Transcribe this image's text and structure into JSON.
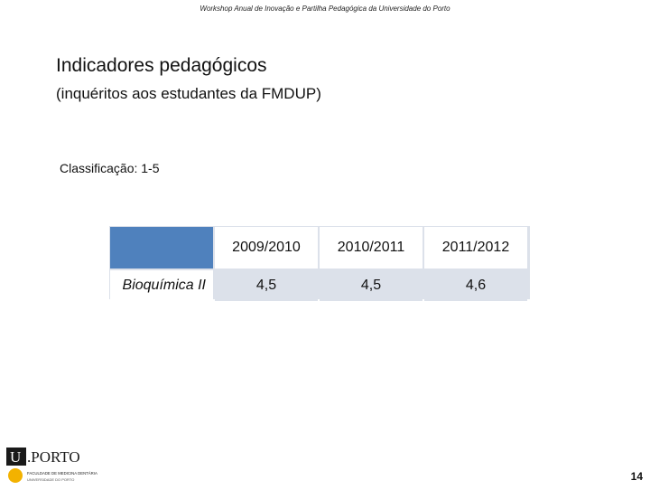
{
  "header": {
    "text": "Workshop Anual de Inovação e Partilha Pedagógica da Universidade do Porto"
  },
  "slide": {
    "title": "Indicadores pedagógicos",
    "subtitle": "(inquéritos aos estudantes da FMDUP)",
    "classification": "Classificação: 1-5",
    "page_number": "14"
  },
  "table": {
    "years": [
      "2009/2010",
      "2010/2011",
      "2011/2012"
    ],
    "rows": [
      {
        "label": "Bioquímica II",
        "values": [
          "4,5",
          "4,5",
          "4,6"
        ]
      }
    ]
  },
  "logo": {
    "brand": "U.PORTO",
    "faculty": "FACULDADE DE MEDICINA DENTÁRIA",
    "university": "UNIVERSIDADE DO PORTO"
  },
  "colors": {
    "header_fill": "#4f81bd",
    "cell_fill": "#dce1ea",
    "logo_circle": "#f3b200"
  }
}
